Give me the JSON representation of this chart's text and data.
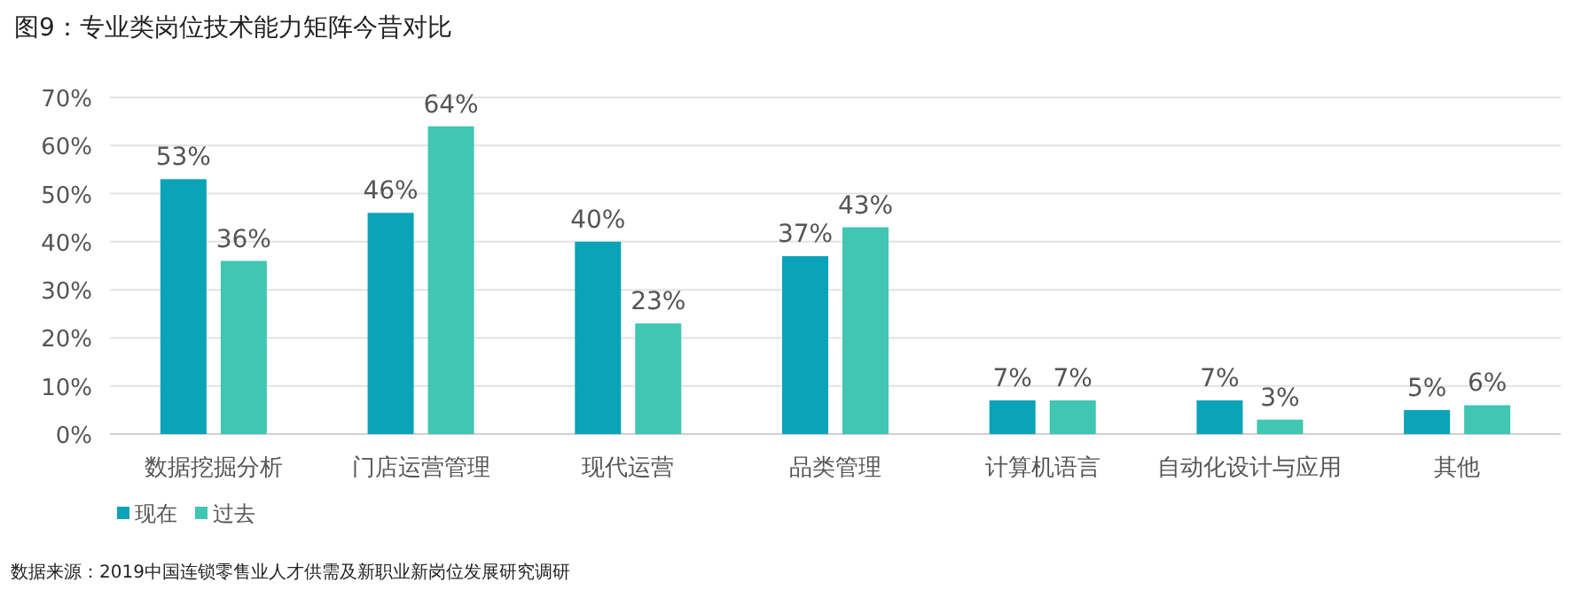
{
  "chart_data": {
    "type": "bar",
    "title": "图9：专业类岗位技术能力矩阵今昔对比",
    "categories": [
      "数据挖掘分析",
      "门店运营管理",
      "现代运营",
      "品类管理",
      "计算机语言",
      "自动化设计与应用",
      "其他"
    ],
    "series": [
      {
        "name": "现在",
        "color": "#0aa3b8",
        "values": [
          53,
          46,
          40,
          37,
          7,
          7,
          5
        ],
        "value_labels": [
          "53%",
          "46%",
          "40%",
          "37%",
          "7%",
          "7%",
          "5%"
        ]
      },
      {
        "name": "过去",
        "color": "#40c6b2",
        "values": [
          36,
          64,
          23,
          43,
          7,
          3,
          6
        ],
        "value_labels": [
          "36%",
          "64%",
          "23%",
          "43%",
          "7%",
          "3%",
          "6%"
        ]
      }
    ],
    "ylim": [
      0,
      70
    ],
    "yticks": [
      {
        "value": 0,
        "label": "0%"
      },
      {
        "value": 10,
        "label": "10%"
      },
      {
        "value": 20,
        "label": "20%"
      },
      {
        "value": 30,
        "label": "30%"
      },
      {
        "value": 40,
        "label": "40%"
      },
      {
        "value": 50,
        "label": "50%"
      },
      {
        "value": 60,
        "label": "60%"
      },
      {
        "value": 70,
        "label": "70%"
      }
    ],
    "grid": "y",
    "legend": "bottom left",
    "annotations": [
      "数据来源：2019中国连锁零售业人才供需及新职业新岗位发展研究调研"
    ]
  }
}
